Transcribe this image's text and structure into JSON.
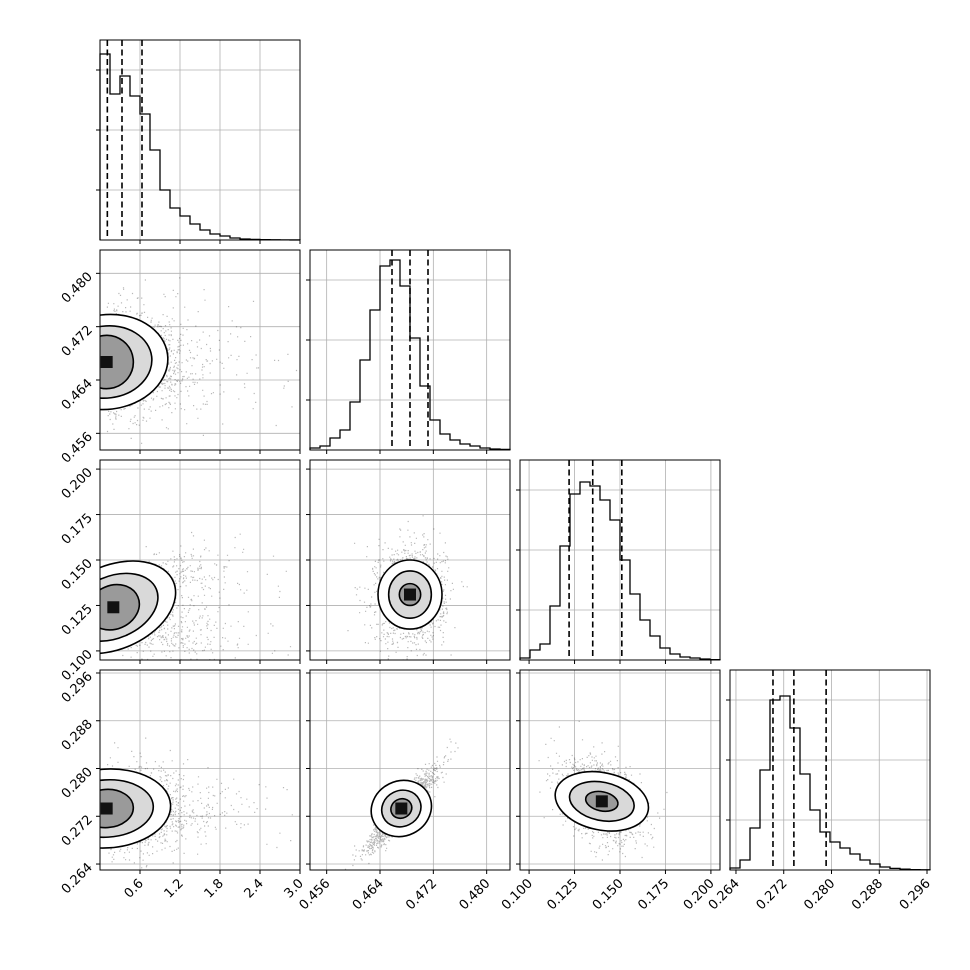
{
  "chart_data": {
    "type": "corner",
    "parameters": [
      {
        "range": [
          0.0,
          3.0
        ],
        "ticks": [
          "0.6",
          "1.2",
          "1.8",
          "2.4",
          "3.0"
        ],
        "tick_values": [
          0.6,
          1.2,
          1.8,
          2.4,
          3.0
        ],
        "quantiles": [
          0.11,
          0.33,
          0.63
        ],
        "hist": [
          0.93,
          0.73,
          0.82,
          0.72,
          0.63,
          0.45,
          0.25,
          0.16,
          0.12,
          0.08,
          0.05,
          0.03,
          0.02,
          0.01,
          0.005,
          0.003,
          0.002,
          0.001,
          0.0005,
          0.0003
        ]
      },
      {
        "range": [
          0.4535,
          0.4835
        ],
        "ticks": [
          "0.456",
          "0.464",
          "0.472",
          "0.480"
        ],
        "tick_values": [
          0.456,
          0.464,
          0.472,
          0.48
        ],
        "quantiles": [
          0.4658,
          0.4685,
          0.4712
        ],
        "hist": [
          0.01,
          0.02,
          0.06,
          0.1,
          0.24,
          0.45,
          0.7,
          0.92,
          0.95,
          0.82,
          0.56,
          0.32,
          0.15,
          0.08,
          0.05,
          0.03,
          0.02,
          0.01,
          0.005,
          0.003
        ]
      },
      {
        "range": [
          0.095,
          0.205
        ],
        "ticks": [
          "0.100",
          "0.125",
          "0.150",
          "0.175",
          "0.200"
        ],
        "tick_values": [
          0.1,
          0.125,
          0.15,
          0.175,
          0.2
        ],
        "quantiles": [
          0.122,
          0.135,
          0.151
        ],
        "hist": [
          0.01,
          0.05,
          0.08,
          0.27,
          0.57,
          0.83,
          0.89,
          0.87,
          0.8,
          0.7,
          0.5,
          0.33,
          0.2,
          0.12,
          0.06,
          0.03,
          0.015,
          0.01,
          0.005,
          0.002
        ]
      },
      {
        "range": [
          0.263,
          0.2965
        ],
        "ticks": [
          "0.264",
          "0.272",
          "0.280",
          "0.288",
          "0.296"
        ],
        "tick_values": [
          0.264,
          0.272,
          0.28,
          0.288,
          0.296
        ],
        "quantiles": [
          0.2702,
          0.2737,
          0.2791
        ],
        "hist": [
          0.01,
          0.05,
          0.21,
          0.5,
          0.85,
          0.87,
          0.71,
          0.48,
          0.3,
          0.19,
          0.14,
          0.11,
          0.08,
          0.05,
          0.03,
          0.015,
          0.008,
          0.004,
          0.002,
          0.001
        ]
      }
    ],
    "pairs": [
      {
        "x": 0,
        "y": 1,
        "peak": [
          0.1,
          0.4667
        ],
        "spread": [
          0.45,
          0.0032
        ],
        "tilt": 0.2,
        "contours": [
          [
            0.4,
            0.004
          ],
          [
            0.68,
            0.0054
          ],
          [
            0.92,
            0.0071
          ]
        ]
      },
      {
        "x": 0,
        "y": 2,
        "peak": [
          0.2,
          0.124
        ],
        "spread": [
          0.5,
          0.011
        ],
        "tilt": 0.78,
        "contours": [
          [
            0.4,
            0.012
          ],
          [
            0.7,
            0.017
          ],
          [
            0.98,
            0.023
          ]
        ]
      },
      {
        "x": 1,
        "y": 2,
        "peak": [
          0.4685,
          0.131
        ],
        "spread": [
          0.0026,
          0.011
        ],
        "tilt": 0.0,
        "contours": [
          [
            0.0016,
            0.006
          ],
          [
            0.0032,
            0.013
          ],
          [
            0.0048,
            0.019
          ]
        ]
      },
      {
        "x": 0,
        "y": 3,
        "peak": [
          0.1,
          0.2733
        ],
        "spread": [
          0.45,
          0.0028
        ],
        "tilt": 0.1,
        "contours": [
          [
            0.4,
            0.0032
          ],
          [
            0.7,
            0.0048
          ],
          [
            0.96,
            0.0066
          ]
        ]
      },
      {
        "x": 1,
        "y": 3,
        "peak": [
          0.4672,
          0.2733
        ],
        "spread": [
          0.0026,
          0.0028
        ],
        "tilt": 0.93,
        "contours": [
          [
            0.0016,
            0.0016
          ],
          [
            0.003,
            0.003
          ],
          [
            0.0046,
            0.0046
          ]
        ]
      },
      {
        "x": 2,
        "y": 3,
        "peak": [
          0.14,
          0.2745
        ],
        "spread": [
          0.011,
          0.0028
        ],
        "tilt": -0.35,
        "contours": [
          [
            0.009,
            0.0016
          ],
          [
            0.018,
            0.0032
          ],
          [
            0.026,
            0.0048
          ]
        ]
      }
    ],
    "grid": true,
    "quantile_line_style": "dashed"
  }
}
